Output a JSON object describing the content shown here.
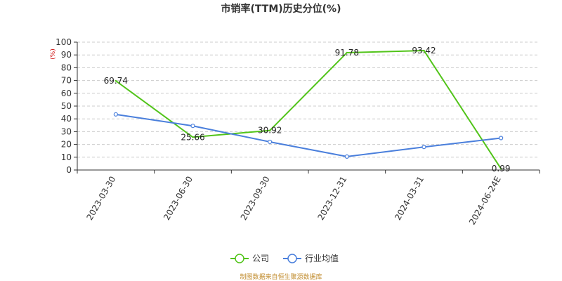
{
  "chart_data": {
    "type": "line",
    "title": "市销率(TTM)历史分位(%)",
    "ylabel": "(%)",
    "xlabel": "",
    "ylim": [
      0,
      100
    ],
    "yticks": [
      0,
      10,
      20,
      30,
      40,
      50,
      60,
      70,
      80,
      90,
      100
    ],
    "grid": true,
    "legend_position": "bottom",
    "categories": [
      "2023-03-30",
      "2023-06-30",
      "2023-09-30",
      "2023-12-31",
      "2024-03-31",
      "2024-06-24E"
    ],
    "series": [
      {
        "name": "公司",
        "color": "#52c41a",
        "marker": false,
        "values": [
          69.74,
          25.66,
          30.92,
          91.78,
          93.42,
          0.99
        ],
        "labels": [
          "69.74",
          "25.66",
          "30.92",
          "91.78",
          "93.42",
          "0.99"
        ]
      },
      {
        "name": "行业均值",
        "color": "#4a7fdc",
        "marker": true,
        "values": [
          43.5,
          34.5,
          22.0,
          10.5,
          18.0,
          25.0
        ]
      }
    ]
  },
  "source_note": "制图数据来自恒生聚源数据库"
}
